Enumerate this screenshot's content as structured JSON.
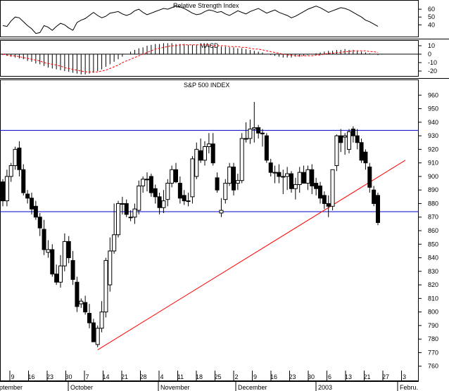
{
  "colors": {
    "background": "#ffffff",
    "frame": "#000000",
    "rsi_line": "#000000",
    "macd_line": "#000000",
    "macd_signal": "#ff0000",
    "support_resistance": "#0000cc",
    "trendline": "#ff0000",
    "candle_up": "#ffffff",
    "candle_down": "#000000"
  },
  "chart_data": [
    {
      "type": "line",
      "title": "Relative Strength Index",
      "ylim": [
        25,
        70
      ],
      "yticks": [
        "60",
        "50",
        "40"
      ],
      "series": [
        {
          "values": [
            39,
            38,
            45,
            50,
            49,
            44,
            39,
            35,
            29,
            30,
            39,
            37,
            33,
            38,
            42,
            40,
            36,
            33,
            43,
            46,
            48,
            52,
            56,
            52,
            49,
            51,
            55,
            56,
            57,
            54,
            52,
            54,
            58,
            60,
            56,
            53,
            55,
            57,
            59,
            61,
            60,
            62,
            64,
            63,
            61,
            58,
            55,
            53,
            54,
            57,
            59,
            58,
            56,
            57,
            54,
            52,
            55,
            58,
            56,
            54,
            57,
            59,
            61,
            58,
            55,
            57,
            59,
            56,
            54,
            52,
            49,
            51,
            54,
            57,
            60,
            62,
            64,
            62,
            59,
            56,
            58,
            60,
            62,
            61,
            59,
            56,
            53,
            50,
            46,
            44,
            41,
            38
          ]
        }
      ]
    },
    {
      "type": "bar",
      "title": "MACD",
      "ylim": [
        -25,
        15
      ],
      "yticks": [
        "10",
        "0",
        "-10",
        "-20"
      ],
      "series": [
        {
          "values": [
            -1,
            -2,
            -3,
            -4,
            -5,
            -6,
            -8,
            -9,
            -11,
            -12,
            -14,
            -16,
            -17,
            -18,
            -19,
            -20,
            -21,
            -22,
            -23,
            -24,
            -24,
            -23,
            -22,
            -20,
            -18,
            -15,
            -12,
            -9,
            -6,
            -3,
            0,
            3,
            5,
            7,
            8,
            10,
            11,
            12,
            12,
            13,
            13,
            13,
            12,
            12,
            12,
            11,
            11,
            11,
            11,
            10,
            10,
            10,
            9,
            9,
            9,
            8,
            8,
            7,
            7,
            6,
            5,
            4,
            3,
            2,
            0,
            -1,
            -2,
            -3,
            -4,
            -4,
            -4,
            -3,
            -3,
            -2,
            -1,
            0,
            1,
            2,
            3,
            4,
            4,
            5,
            5,
            6,
            5,
            5,
            4,
            3,
            2,
            1,
            0,
            -1
          ]
        },
        {
          "values": [
            0,
            -1,
            -2,
            -2,
            -3,
            -4,
            -5,
            -6,
            -7,
            -8,
            -10,
            -11,
            -12,
            -13,
            -14,
            -16,
            -17,
            -18,
            -19,
            -20,
            -21,
            -21,
            -21,
            -21,
            -20,
            -19,
            -17,
            -15,
            -13,
            -10,
            -8,
            -6,
            -4,
            -2,
            0,
            2,
            4,
            6,
            7,
            8,
            9,
            10,
            10,
            11,
            11,
            11,
            11,
            11,
            11,
            11,
            11,
            10,
            10,
            10,
            10,
            9,
            9,
            9,
            8,
            8,
            7,
            6,
            6,
            5,
            4,
            3,
            2,
            1,
            0,
            -1,
            -1,
            -2,
            -2,
            -2,
            -2,
            -2,
            -1,
            -1,
            0,
            1,
            1,
            2,
            2,
            3,
            3,
            4,
            4,
            4,
            4,
            3,
            3,
            2
          ]
        }
      ]
    },
    {
      "type": "bar",
      "title": "S&P 500 INDEX",
      "ylim": [
        750,
        970
      ],
      "yticks": [
        "960",
        "950",
        "940",
        "930",
        "920",
        "910",
        "900",
        "890",
        "880",
        "870",
        "860",
        "850",
        "840",
        "830",
        "820",
        "810",
        "800",
        "790",
        "780",
        "770",
        "760"
      ],
      "xticks": [
        "9",
        "16",
        "23",
        "30",
        "7",
        "14",
        "21",
        "28",
        "4",
        "11",
        "18",
        "25",
        "2",
        "9",
        "16",
        "23",
        "30",
        "6",
        "13",
        "21",
        "27",
        "3"
      ],
      "months": [
        "September",
        "October",
        "November",
        "December",
        "2003",
        "Febru."
      ],
      "series": [
        {
          "name": "open",
          "values": [
            896,
            882,
            900,
            908,
            921,
            905,
            887,
            884,
            878,
            870,
            861,
            844,
            846,
            828,
            822,
            834,
            852,
            838,
            822,
            806,
            807,
            799,
            792,
            776,
            788,
            800,
            820,
            845,
            857,
            880,
            880,
            870,
            870,
            875,
            893,
            898,
            900,
            891,
            885,
            877,
            883,
            895,
            905,
            895,
            886,
            882,
            885,
            900,
            919,
            912,
            922,
            924,
            899,
            873,
            883,
            895,
            907,
            895,
            897,
            928,
            928,
            935,
            936,
            932,
            930,
            910,
            903,
            903,
            900,
            900,
            902,
            891,
            894,
            903,
            895,
            905,
            895,
            893,
            886,
            880,
            878,
            908,
            930,
            929,
            920,
            935,
            930,
            925,
            918,
            907,
            890,
            886
          ]
        },
        {
          "name": "high",
          "values": [
            898,
            905,
            910,
            922,
            926,
            909,
            890,
            888,
            882,
            873,
            868,
            853,
            850,
            835,
            842,
            858,
            856,
            845,
            826,
            810,
            812,
            806,
            795,
            790,
            808,
            840,
            855,
            880,
            882,
            885,
            883,
            875,
            880,
            897,
            900,
            903,
            902,
            894,
            888,
            890,
            898,
            908,
            910,
            900,
            890,
            888,
            915,
            925,
            928,
            926,
            932,
            932,
            903,
            884,
            898,
            910,
            910,
            902,
            932,
            940,
            942,
            955,
            938,
            935,
            932,
            913,
            908,
            909,
            905,
            907,
            904,
            899,
            907,
            908,
            908,
            909,
            899,
            896,
            889,
            886,
            890,
            931,
            935,
            932,
            935,
            937,
            935,
            928,
            920,
            910,
            893,
            888
          ]
        },
        {
          "name": "low",
          "values": [
            878,
            878,
            896,
            905,
            900,
            886,
            880,
            872,
            868,
            856,
            842,
            840,
            826,
            820,
            818,
            830,
            836,
            820,
            800,
            803,
            798,
            788,
            785,
            774,
            785,
            796,
            815,
            843,
            855,
            872,
            870,
            867,
            865,
            872,
            888,
            889,
            885,
            880,
            872,
            873,
            878,
            892,
            895,
            880,
            879,
            878,
            880,
            898,
            910,
            908,
            917,
            908,
            888,
            870,
            880,
            893,
            886,
            890,
            895,
            925,
            924,
            925,
            928,
            922,
            910,
            900,
            895,
            895,
            887,
            890,
            888,
            883,
            888,
            895,
            890,
            887,
            886,
            880,
            876,
            870,
            875,
            904,
            918,
            916,
            917,
            925,
            920,
            910,
            905,
            888,
            878,
            864
          ]
        },
        {
          "name": "close",
          "values": [
            882,
            900,
            908,
            920,
            905,
            888,
            884,
            876,
            870,
            862,
            846,
            846,
            828,
            822,
            834,
            852,
            840,
            824,
            804,
            808,
            800,
            792,
            778,
            788,
            800,
            838,
            845,
            857,
            880,
            880,
            872,
            870,
            876,
            893,
            898,
            898,
            888,
            885,
            877,
            882,
            895,
            905,
            896,
            884,
            882,
            882,
            913,
            920,
            912,
            922,
            924,
            910,
            890,
            875,
            895,
            907,
            890,
            897,
            928,
            928,
            935,
            936,
            932,
            932,
            912,
            903,
            903,
            900,
            900,
            902,
            891,
            894,
            903,
            895,
            905,
            893,
            891,
            884,
            880,
            878,
            905,
            930,
            925,
            930,
            933,
            930,
            925,
            912,
            910,
            892,
            880,
            866
          ]
        }
      ],
      "lines": [
        {
          "name": "resistance",
          "values": [
            934
          ]
        },
        {
          "name": "support",
          "values": [
            874
          ]
        },
        {
          "name": "trendline",
          "values": [
            772,
            912
          ]
        }
      ]
    }
  ]
}
